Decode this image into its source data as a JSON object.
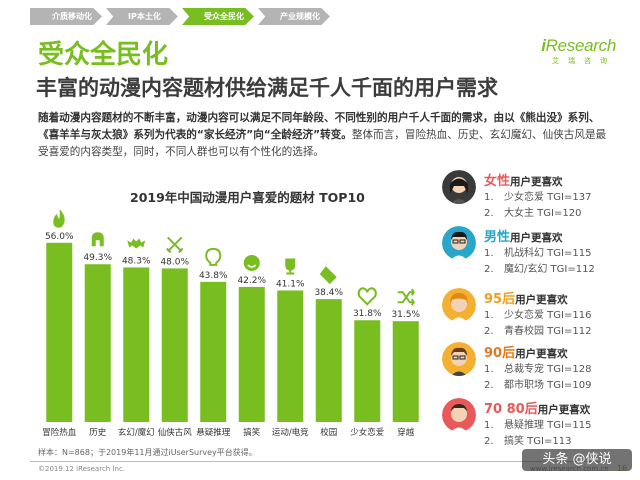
{
  "tabs": [
    {
      "label": "介质移动化",
      "active": false
    },
    {
      "label": "IP本土化",
      "active": false
    },
    {
      "label": "受众全民化",
      "active": true
    },
    {
      "label": "产业规模化",
      "active": false
    }
  ],
  "logo": {
    "main_i": "i",
    "main_rest": "Research",
    "sub": "艾瑞咨询"
  },
  "section_title": "受众全民化",
  "subtitle": "丰富的动漫内容题材供给满足千人千面的用户需求",
  "description": {
    "bold": "随着动漫内容题材的不断丰富，动漫内容可以满足不同年龄段、不同性别的用户千人千面的需求，由以《熊出没》系列、《喜羊羊与灰太狼》系列为代表的“家长经济”向“全龄经济”转变。",
    "normal": "整体而言，冒险热血、历史、玄幻魔幻、仙侠古风是最受喜爱的内容类型，同时，不同人群也可以有个性化的选择。"
  },
  "chart_data": {
    "type": "bar",
    "title": "2019年中国动漫用户喜爱的题材 TOP10",
    "categories": [
      "冒险热血",
      "历史",
      "玄幻/魔幻",
      "仙侠古风",
      "悬疑推理",
      "搞笑",
      "运动/电竞",
      "校园",
      "少女恋爱",
      "穿越"
    ],
    "values": [
      56.0,
      49.3,
      48.3,
      48.0,
      43.8,
      42.2,
      41.1,
      38.4,
      31.8,
      31.5
    ],
    "value_labels": [
      "56.0%",
      "49.3%",
      "48.3%",
      "48.0%",
      "43.8%",
      "42.2%",
      "41.1%",
      "38.4%",
      "31.8%",
      "31.5%"
    ],
    "icons": [
      "flame-icon",
      "helmet-icon",
      "bat-icon",
      "swords-icon",
      "lightbulb-icon",
      "smiley-icon",
      "trophy-icon",
      "eraser-icon",
      "heart-icon",
      "shuffle-icon"
    ],
    "ylim": [
      0,
      60
    ],
    "bar_color": "#78be20",
    "icon_color": "#78be20",
    "grid": false
  },
  "groups": [
    {
      "head_hl": "女性",
      "head_rest": "用户更喜欢",
      "hl_color": "#e85a5a",
      "avatar_color": "#3a3a3a",
      "items": [
        {
          "num": "1.",
          "text": "少女恋爱 TGI=137"
        },
        {
          "num": "2.",
          "text": "大女主 TGI=120"
        }
      ]
    },
    {
      "head_hl": "男性",
      "head_rest": "用户更喜欢",
      "hl_color": "#2aa6c9",
      "avatar_color": "#2aa6c9",
      "items": [
        {
          "num": "1.",
          "text": "机战科幻 TGI=115"
        },
        {
          "num": "2.",
          "text": "魔幻/玄幻 TGI=112"
        }
      ]
    },
    {
      "head_hl": "95后",
      "head_rest": "用户更喜欢",
      "hl_color": "#f0a020",
      "avatar_color": "#f4b030",
      "items": [
        {
          "num": "1.",
          "text": "少女恋爱 TGI=116"
        },
        {
          "num": "2.",
          "text": "青春校园 TGI=112"
        }
      ]
    },
    {
      "head_hl": "90后",
      "head_rest": "用户更喜欢",
      "hl_color": "#e07a20",
      "avatar_color": "#8a5a2a",
      "items": [
        {
          "num": "1.",
          "text": "总裁专宠 TGI=128"
        },
        {
          "num": "2.",
          "text": "都市职场 TGI=109"
        }
      ]
    },
    {
      "head_hl": "70 80后",
      "head_rest": "用户更喜欢",
      "hl_color": "#e85a5a",
      "avatar_color": "#e85a5a",
      "items": [
        {
          "num": "1.",
          "text": "悬疑推理 TGI=115"
        },
        {
          "num": "2.",
          "text": "搞笑 TGI=113"
        }
      ]
    }
  ],
  "note": "样本：N=868；于2019年11月通过iUserSurvey平台获得。",
  "copyright": "©2019.12 iResearch Inc.",
  "site": "www.iresearch.com.cn",
  "page_number": "16",
  "watermark": "头条 @侠说"
}
